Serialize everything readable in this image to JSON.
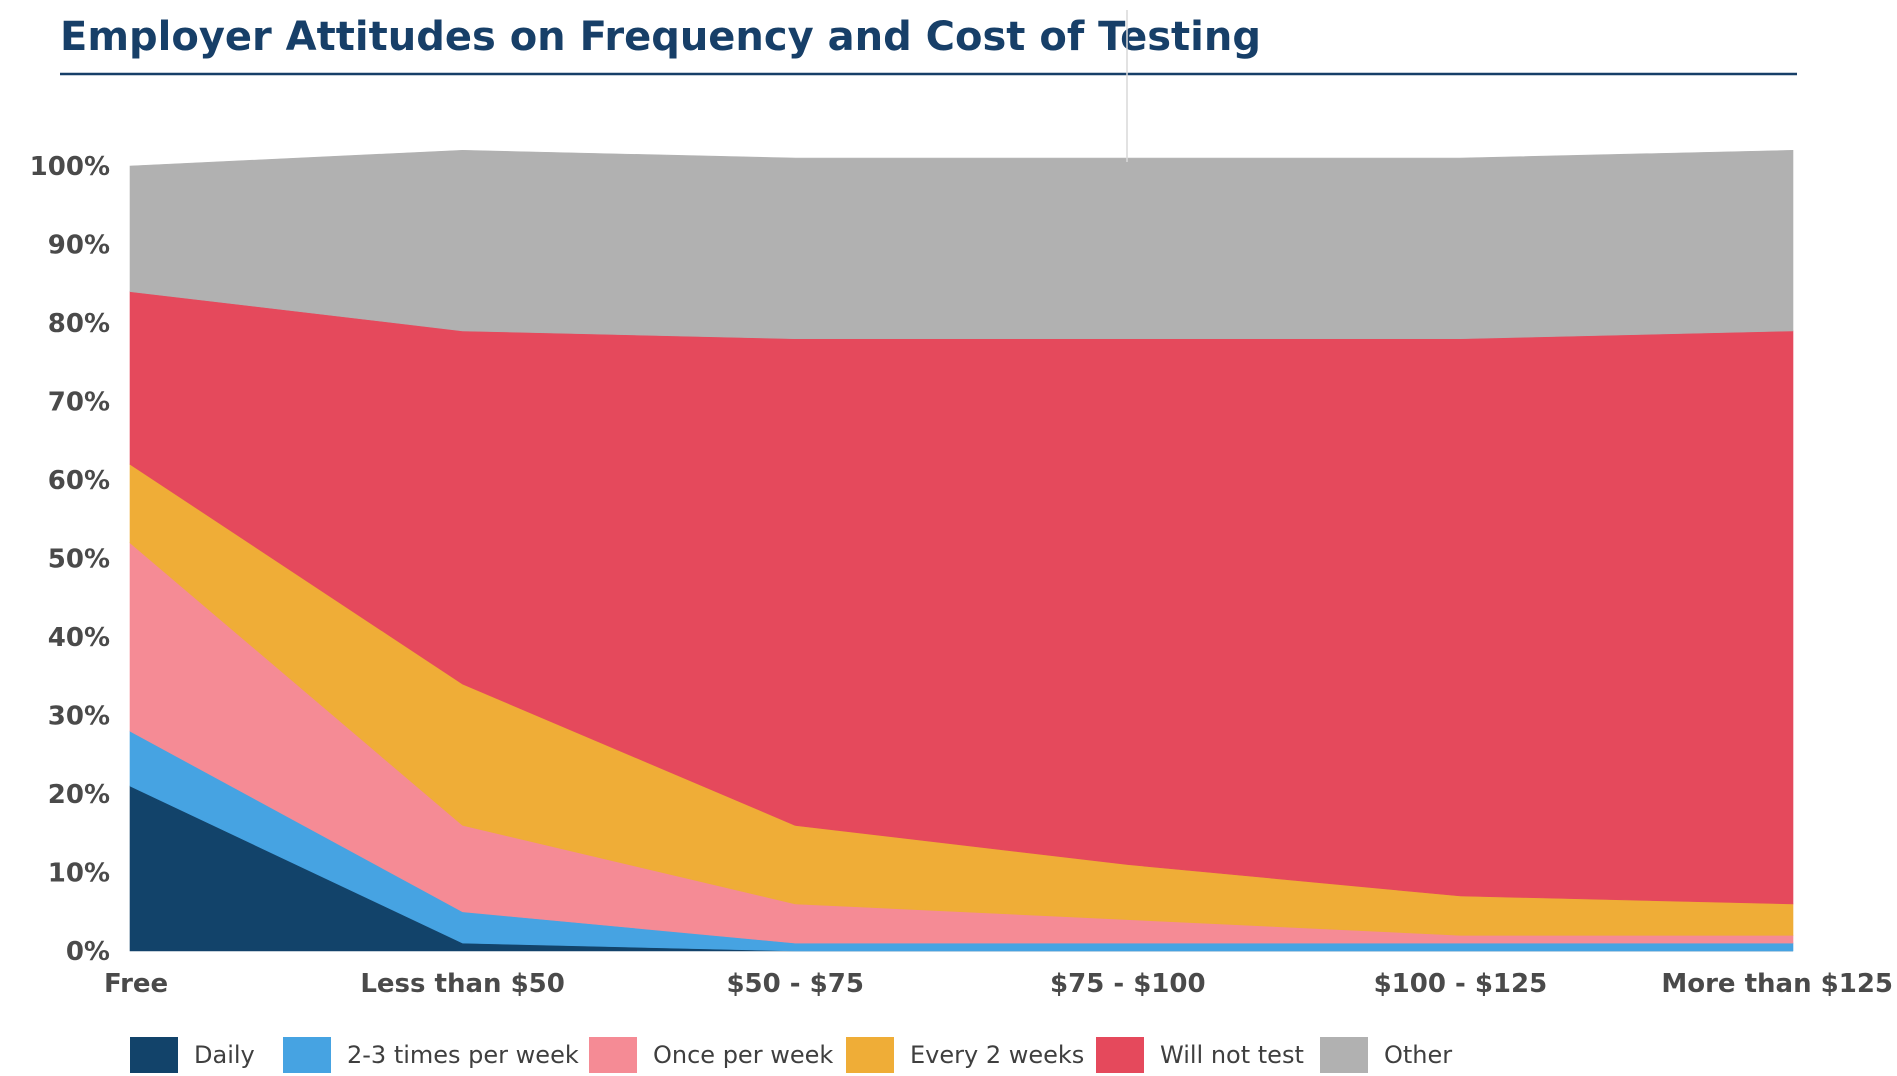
{
  "chart_data": {
    "type": "area",
    "stacked": true,
    "title": "Employer Attitudes on Frequency and Cost of Testing",
    "xlabel": "",
    "ylabel": "",
    "ylim": [
      0,
      100
    ],
    "y_ticks": [
      "0%",
      "10%",
      "20%",
      "30%",
      "40%",
      "50%",
      "60%",
      "70%",
      "80%",
      "90%",
      "100%"
    ],
    "grid": false,
    "legend": "bottom",
    "categories": [
      "Free",
      "Less than $50",
      "$50 - $75",
      "$75 - $100",
      "$100 - $125",
      "More than $125"
    ],
    "series": [
      {
        "name": "Daily",
        "color": "#12436a",
        "values": [
          21,
          1,
          0,
          0,
          0,
          0
        ]
      },
      {
        "name": "2-3 times per week",
        "color": "#46a3e2",
        "values": [
          7,
          4,
          1,
          1,
          1,
          1
        ]
      },
      {
        "name": "Once per week",
        "color": "#f58b95",
        "values": [
          24,
          11,
          5,
          3,
          1,
          1
        ]
      },
      {
        "name": "Every 2 weeks",
        "color": "#efad37",
        "values": [
          10,
          18,
          10,
          7,
          5,
          4
        ]
      },
      {
        "name": "Will not test",
        "color": "#e5495c",
        "values": [
          22,
          45,
          62,
          67,
          71,
          73
        ]
      },
      {
        "name": "Other",
        "color": "#b1b1b1",
        "values": [
          16,
          23,
          23,
          23,
          23,
          23
        ]
      }
    ]
  }
}
